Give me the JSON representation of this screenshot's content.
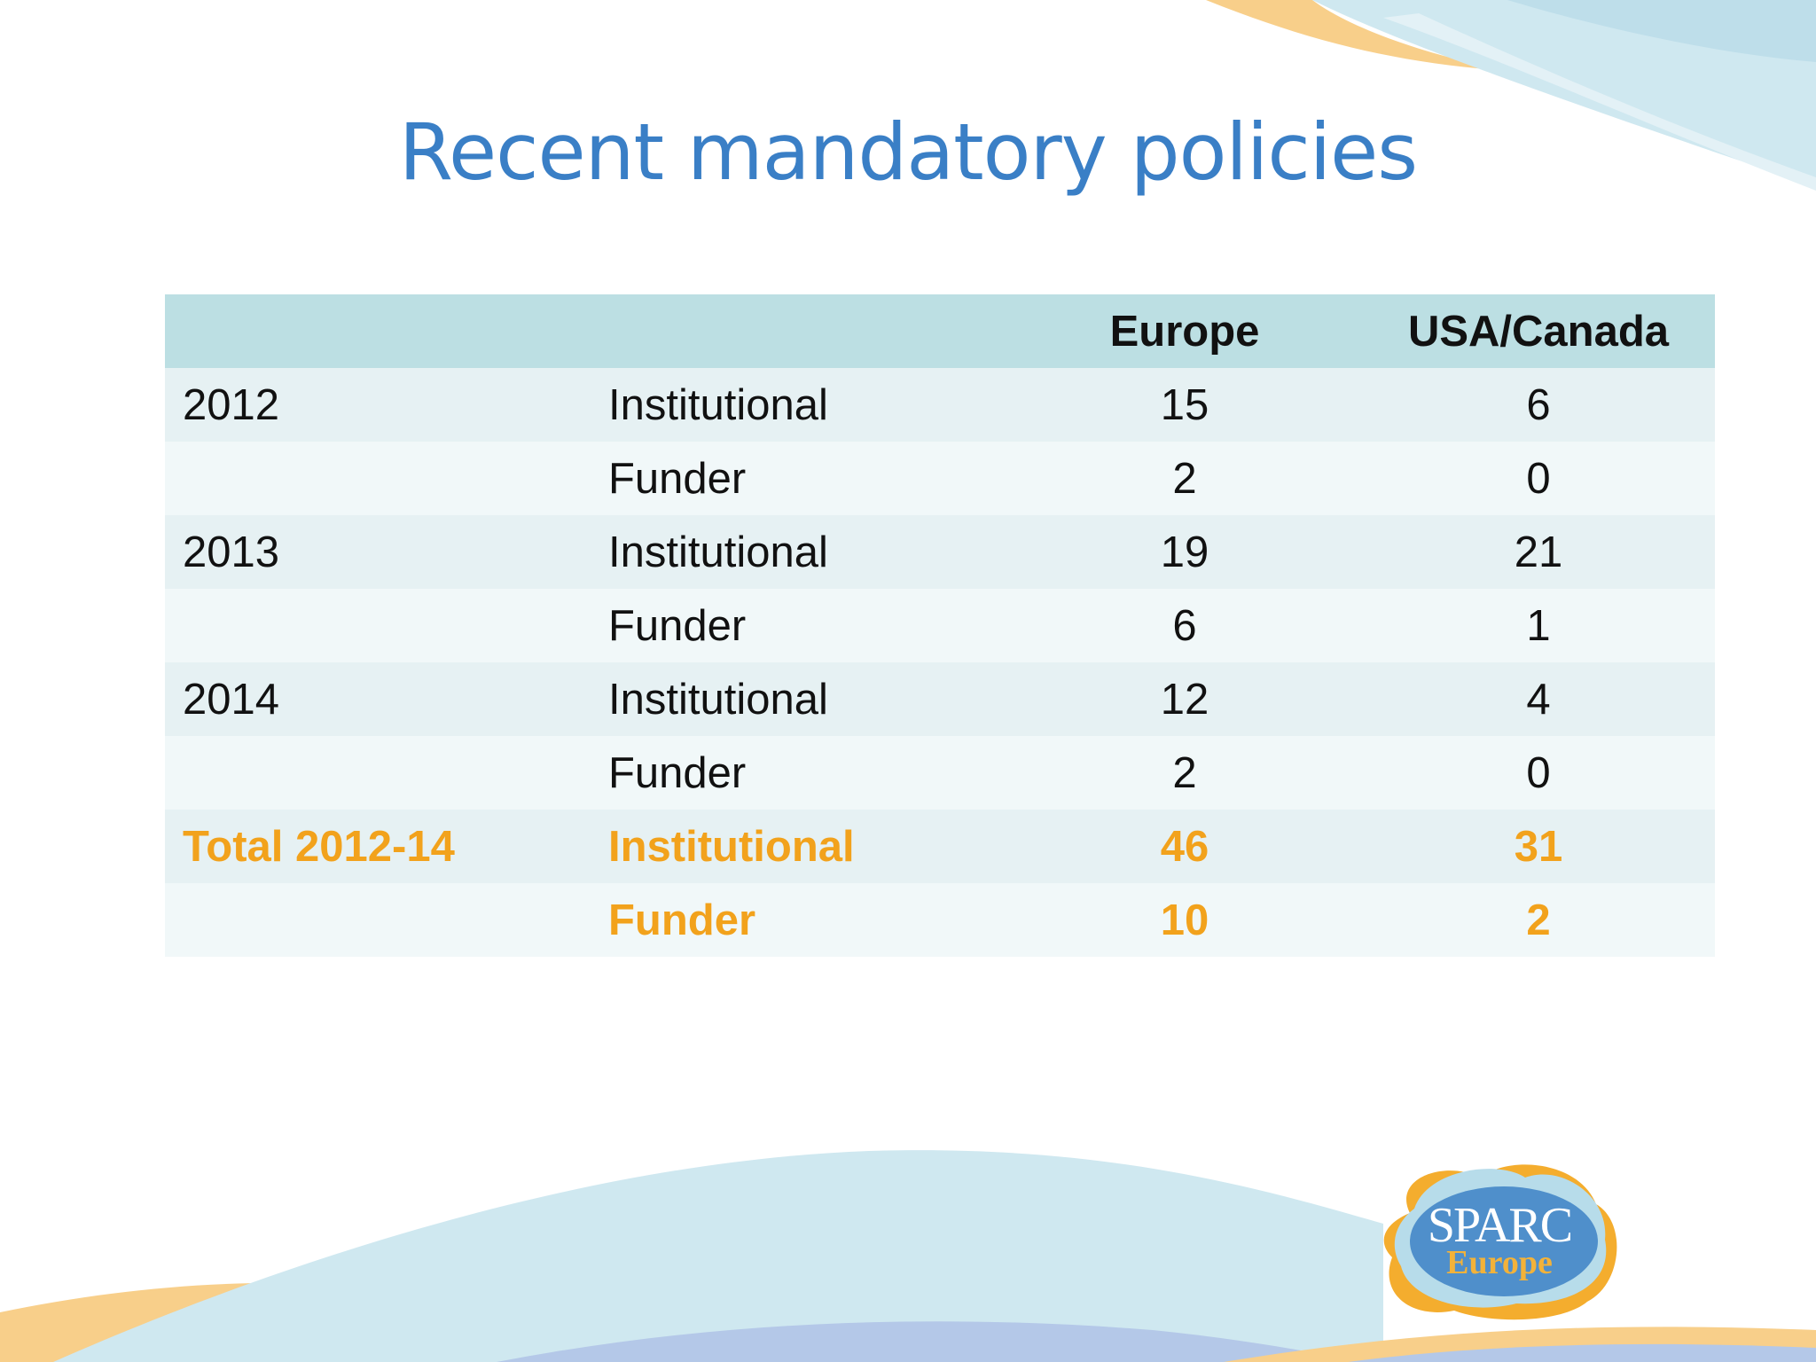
{
  "slide": {
    "title": "Recent mandatory policies"
  },
  "table": {
    "headers": [
      "",
      "",
      "Europe",
      "USA/Canada"
    ],
    "rows": [
      {
        "year": "2012",
        "type": "Institutional",
        "europe": "15",
        "usa_canada": "6"
      },
      {
        "year": "",
        "type": "Funder",
        "europe": "2",
        "usa_canada": "0"
      },
      {
        "year": "2013",
        "type": "Institutional",
        "europe": "19",
        "usa_canada": "21"
      },
      {
        "year": "",
        "type": "Funder",
        "europe": "6",
        "usa_canada": "1"
      },
      {
        "year": "2014",
        "type": "Institutional",
        "europe": "12",
        "usa_canada": "4"
      },
      {
        "year": "",
        "type": "Funder",
        "europe": "2",
        "usa_canada": "0"
      },
      {
        "year": "Total 2012-14",
        "type": "Institutional",
        "europe": "46",
        "usa_canada": "31"
      },
      {
        "year": "",
        "type": "Funder",
        "europe": "10",
        "usa_canada": "2"
      }
    ]
  },
  "logo": {
    "line1": "SPARC",
    "line2": "Europe"
  },
  "colors": {
    "title": "#3a7fc6",
    "header_bg": "#bcdfe3",
    "row_odd_bg": "#e6f1f3",
    "row_even_bg": "#f1f8f9",
    "total_text": "#f2a21c",
    "decor_blue": "#cfe8f0",
    "decor_orange": "#f8cf8a"
  }
}
